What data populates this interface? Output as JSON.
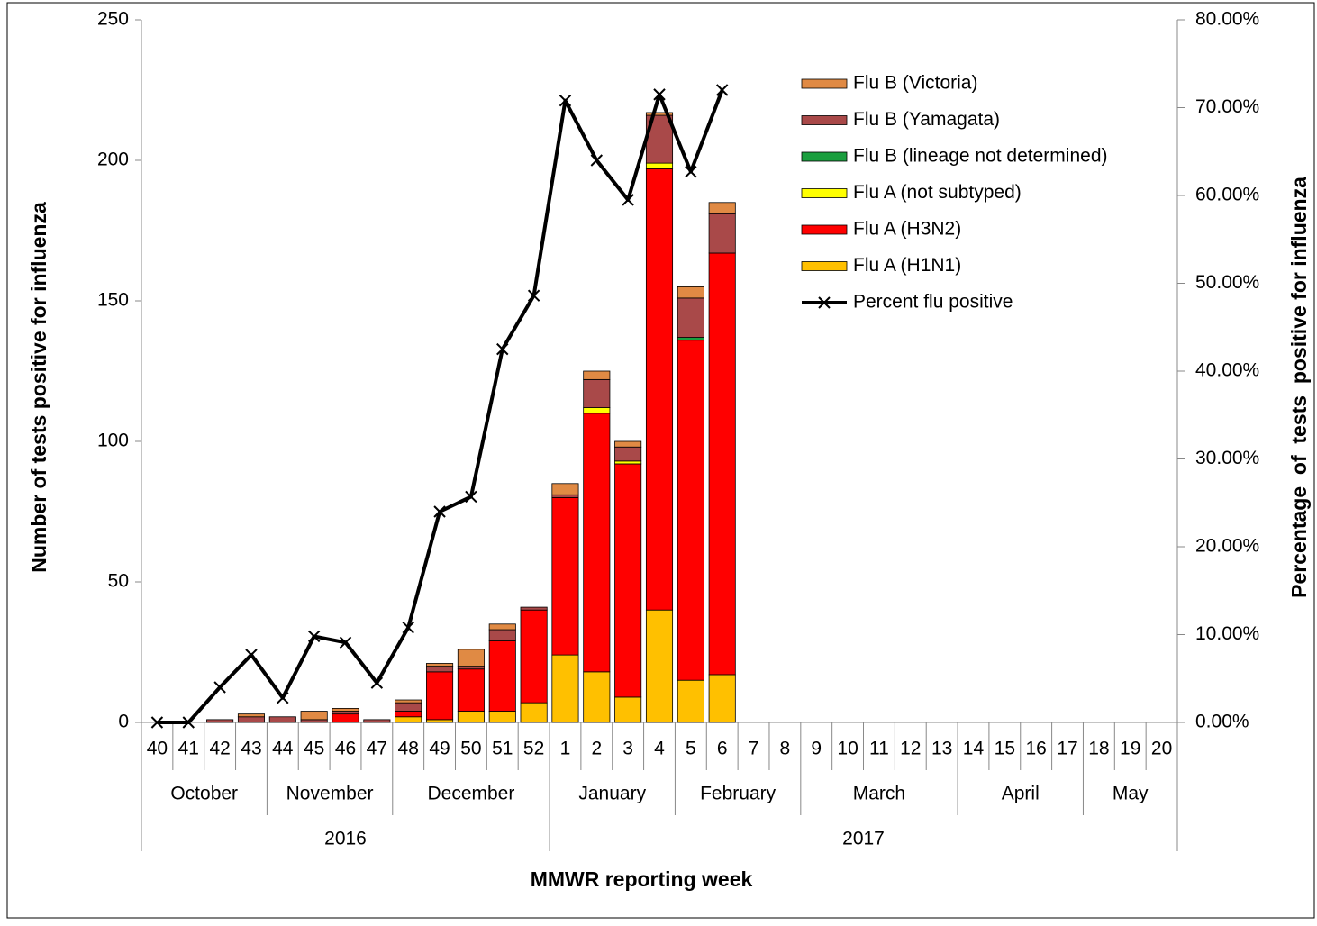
{
  "chart_data": {
    "type": "stacked-bar-line",
    "ylabel": "Number of tests positive for influenza",
    "y2label": "Percentage  of  tests  positive for influenza",
    "xlabel": "MMWR reporting week",
    "categories": [
      "40",
      "41",
      "42",
      "43",
      "44",
      "45",
      "46",
      "47",
      "48",
      "49",
      "50",
      "51",
      "52",
      "1",
      "2",
      "3",
      "4",
      "5",
      "6",
      "7",
      "8",
      "9",
      "10",
      "11",
      "12",
      "13",
      "14",
      "15",
      "16",
      "17",
      "18",
      "19",
      "20"
    ],
    "months": [
      "October",
      null,
      null,
      null,
      "November",
      null,
      null,
      null,
      "December",
      null,
      null,
      null,
      null,
      "January",
      null,
      null,
      null,
      "February",
      null,
      null,
      null,
      "March",
      null,
      null,
      null,
      null,
      "April",
      null,
      null,
      null,
      "May",
      null,
      null
    ],
    "years": [
      "2016",
      null,
      null,
      null,
      null,
      null,
      null,
      null,
      null,
      null,
      null,
      null,
      null,
      "2017",
      null,
      null,
      null,
      null,
      null,
      null,
      null,
      null,
      null,
      null,
      null,
      null,
      null,
      null,
      null,
      null,
      null,
      null,
      null
    ],
    "ylim": [
      0,
      250
    ],
    "yticks": [
      0,
      50,
      100,
      150,
      200,
      250
    ],
    "y2lim": [
      0,
      80
    ],
    "y2ticks": [
      {
        "value": 0,
        "label": "0.00%"
      },
      {
        "value": 10,
        "label": "10.00%"
      },
      {
        "value": 20,
        "label": "20.00%"
      },
      {
        "value": 30,
        "label": "30.00%"
      },
      {
        "value": 40,
        "label": "40.00%"
      },
      {
        "value": 50,
        "label": "50.00%"
      },
      {
        "value": 60,
        "label": "60.00%"
      },
      {
        "value": 70,
        "label": "70.00%"
      },
      {
        "value": 80,
        "label": "80.00%"
      }
    ],
    "series": [
      {
        "name": "Flu A (H1N1)",
        "color": "#ffc000",
        "values": [
          0,
          0,
          0,
          0,
          0,
          0,
          0,
          0,
          2,
          1,
          4,
          4,
          7,
          24,
          18,
          9,
          40,
          15,
          17,
          null,
          null,
          null,
          null,
          null,
          null,
          null,
          null,
          null,
          null,
          null,
          null,
          null,
          null
        ]
      },
      {
        "name": "Flu A (H3N2)",
        "color": "#ff0000",
        "values": [
          0,
          0,
          0,
          0,
          0,
          0,
          3,
          0,
          2,
          17,
          15,
          25,
          33,
          56,
          92,
          83,
          157,
          121,
          150,
          null,
          null,
          null,
          null,
          null,
          null,
          null,
          null,
          null,
          null,
          null,
          null,
          null,
          null
        ]
      },
      {
        "name": "Flu A (not subtyped)",
        "color": "#ffff00",
        "values": [
          0,
          0,
          0,
          0,
          0,
          0,
          0,
          0,
          0,
          0,
          0,
          0,
          0,
          0,
          2,
          1,
          2,
          0,
          0,
          null,
          null,
          null,
          null,
          null,
          null,
          null,
          null,
          null,
          null,
          null,
          null,
          null,
          null
        ]
      },
      {
        "name": "Flu B (lineage not determined)",
        "color": "#1a9e3e",
        "values": [
          0,
          0,
          0,
          0,
          0,
          0,
          0,
          0,
          0,
          0,
          0,
          0,
          0,
          0,
          0,
          0,
          0,
          1,
          0,
          null,
          null,
          null,
          null,
          null,
          null,
          null,
          null,
          null,
          null,
          null,
          null,
          null,
          null
        ]
      },
      {
        "name": "Flu B (Yamagata)",
        "color": "#a94949",
        "values": [
          0,
          0,
          1,
          2,
          2,
          1,
          1,
          1,
          3,
          2,
          1,
          4,
          1,
          1,
          10,
          5,
          17,
          14,
          14,
          null,
          null,
          null,
          null,
          null,
          null,
          null,
          null,
          null,
          null,
          null,
          null,
          null,
          null
        ]
      },
      {
        "name": "Flu B (Victoria)",
        "color": "#e08a44",
        "values": [
          0,
          0,
          0,
          1,
          0,
          3,
          1,
          0,
          1,
          1,
          6,
          2,
          0,
          4,
          3,
          2,
          1,
          4,
          4,
          null,
          null,
          null,
          null,
          null,
          null,
          null,
          null,
          null,
          null,
          null,
          null,
          null,
          null
        ]
      },
      {
        "name": "Percent flu positive",
        "color": "#000000",
        "axis": "y2",
        "values": [
          0,
          0,
          4,
          7.7,
          2.8,
          9.8,
          9.1,
          4.5,
          10.8,
          24,
          25.7,
          42.5,
          48.6,
          70.8,
          64,
          59.5,
          71.5,
          62.7,
          72,
          null,
          null,
          null,
          null,
          null,
          null,
          null,
          null,
          null,
          null,
          null,
          null,
          null,
          null
        ]
      }
    ]
  }
}
